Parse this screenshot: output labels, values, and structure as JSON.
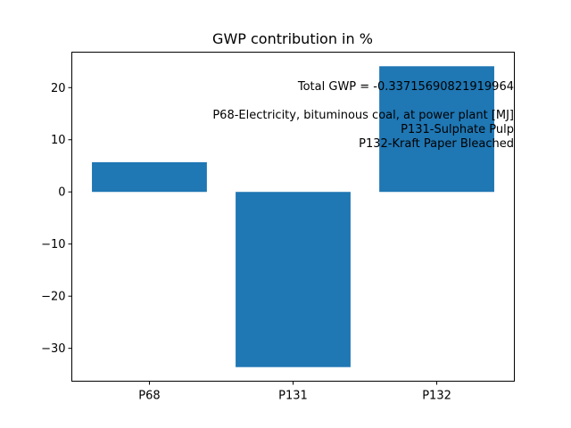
{
  "chart_data": {
    "type": "bar",
    "title": "GWP contribution in %",
    "xlabel": "",
    "ylabel": "",
    "categories": [
      "P68",
      "P131",
      "P132"
    ],
    "values": [
      5.7,
      -33.6,
      24.1
    ],
    "ylim": [
      -36.3,
      26.8
    ],
    "yticks": [
      20,
      10,
      0,
      -10,
      -20,
      -30
    ],
    "ytick_labels": [
      "20",
      "10",
      "0",
      "−10",
      "−20",
      "−30"
    ],
    "bar_color": "#1f77b4",
    "grid": false,
    "annotations": [
      "Total GWP = -0.33715690821919964",
      "",
      "P68-Electricity, bituminous coal, at power plant [MJ]",
      "P131-Sulphate Pulp",
      "P132-Kraft Paper Bleached"
    ]
  }
}
